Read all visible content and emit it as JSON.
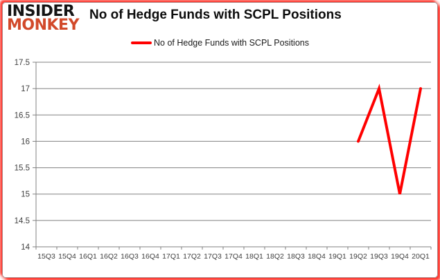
{
  "logo": {
    "line1": "INSIDER",
    "line2": "MONKEY",
    "monkey_color": "#d2492a"
  },
  "header": {
    "title": "No of Hedge Funds with SCPL Positions"
  },
  "legend": {
    "label": "No of Hedge Funds with SCPL Positions"
  },
  "chart_data": {
    "type": "line",
    "title": "No of Hedge Funds with SCPL Positions",
    "categories": [
      "15Q3",
      "15Q4",
      "16Q1",
      "16Q2",
      "16Q3",
      "16Q4",
      "17Q1",
      "17Q2",
      "17Q3",
      "17Q4",
      "18Q1",
      "18Q2",
      "18Q3",
      "18Q4",
      "19Q1",
      "19Q2",
      "19Q3",
      "19Q4",
      "20Q1"
    ],
    "series": [
      {
        "name": "No of Hedge Funds with SCPL Positions",
        "color": "#ff0000",
        "values": [
          null,
          null,
          null,
          null,
          null,
          null,
          null,
          null,
          null,
          null,
          null,
          null,
          null,
          null,
          null,
          16,
          17,
          15,
          17
        ]
      }
    ],
    "xlabel": "",
    "ylabel": "",
    "ylim": [
      14,
      17.5
    ],
    "yticks": [
      14,
      14.5,
      15,
      15.5,
      16,
      16.5,
      17,
      17.5
    ],
    "grid": true,
    "legend_position": "top-center",
    "gridline_color": "#808080",
    "axis_text_color": "#404040",
    "line_width": 4
  }
}
